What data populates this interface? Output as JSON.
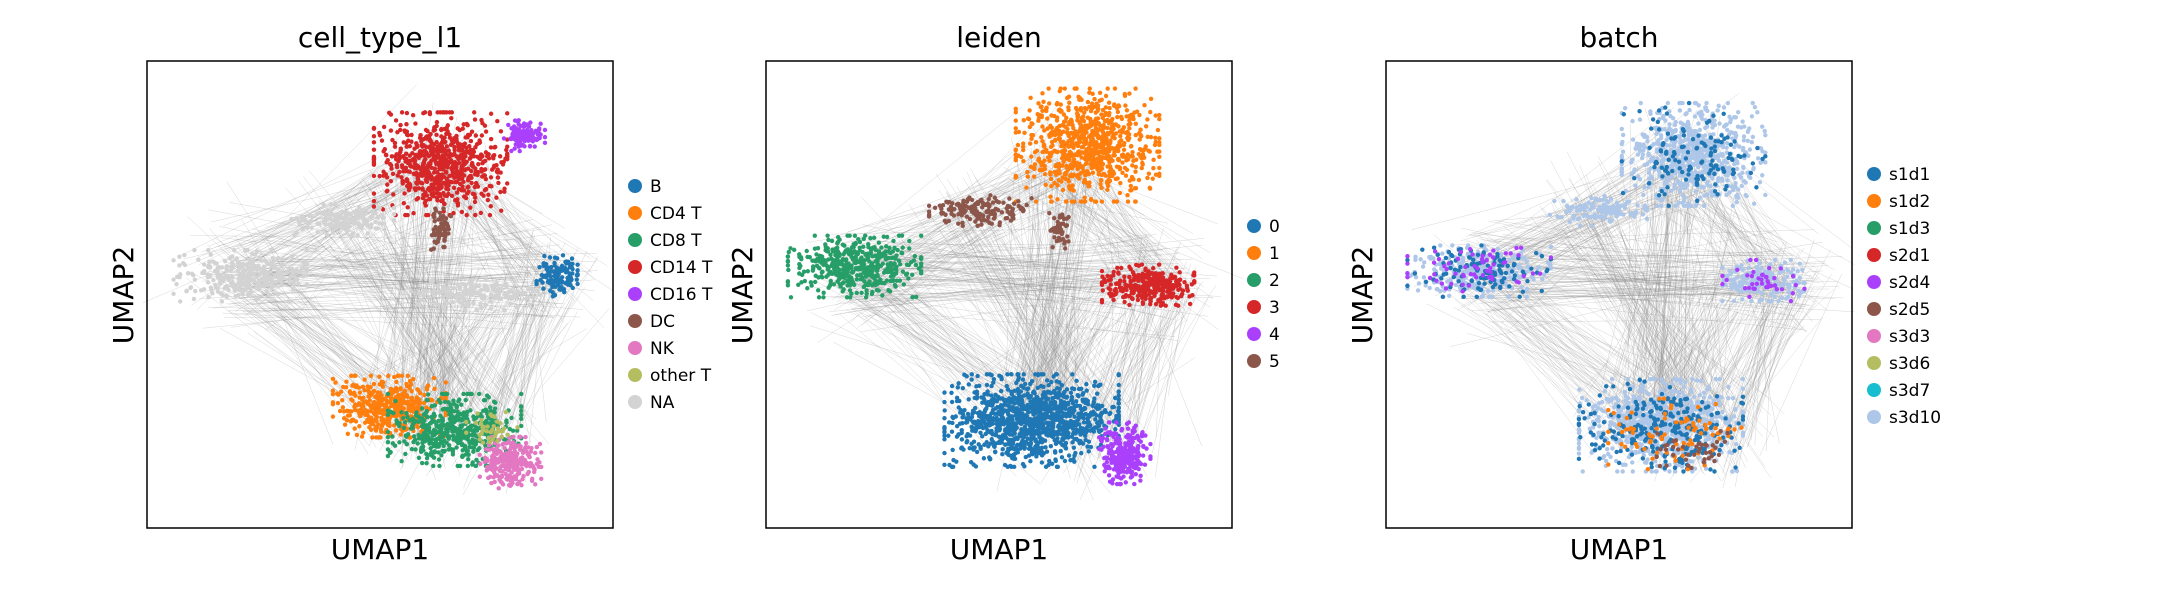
{
  "chart_data": [
    {
      "type": "scatter",
      "title": "cell_type_l1",
      "xlabel": "UMAP1",
      "ylabel": "UMAP2",
      "legend_position": "right",
      "legend": [
        {
          "name": "B",
          "color": "#1f77b4"
        },
        {
          "name": "CD4 T",
          "color": "#ff7f0e"
        },
        {
          "name": "CD8 T",
          "color": "#279e68"
        },
        {
          "name": "CD14 T",
          "color": "#d62728"
        },
        {
          "name": "CD16 T",
          "color": "#aa40fc"
        },
        {
          "name": "DC",
          "color": "#8c564b"
        },
        {
          "name": "NK",
          "color": "#e377c2"
        },
        {
          "name": "other T",
          "color": "#b5bd61"
        },
        {
          "name": "NA",
          "color": "#d3d3d3"
        }
      ],
      "clusters": [
        {
          "group": "CD14 T",
          "x": 0.63,
          "y": 0.22,
          "rx": 0.13,
          "ry": 0.1,
          "n": 700
        },
        {
          "group": "CD16 T",
          "x": 0.81,
          "y": 0.16,
          "rx": 0.04,
          "ry": 0.03,
          "n": 120
        },
        {
          "group": "NA",
          "x": 0.2,
          "y": 0.46,
          "rx": 0.13,
          "ry": 0.05,
          "n": 280
        },
        {
          "group": "NA",
          "x": 0.42,
          "y": 0.34,
          "rx": 0.1,
          "ry": 0.03,
          "n": 150
        },
        {
          "group": "NA",
          "x": 0.72,
          "y": 0.5,
          "rx": 0.14,
          "ry": 0.03,
          "n": 160
        },
        {
          "group": "B",
          "x": 0.88,
          "y": 0.46,
          "rx": 0.04,
          "ry": 0.04,
          "n": 130
        },
        {
          "group": "DC",
          "x": 0.63,
          "y": 0.36,
          "rx": 0.02,
          "ry": 0.04,
          "n": 60
        },
        {
          "group": "CD4 T",
          "x": 0.52,
          "y": 0.74,
          "rx": 0.11,
          "ry": 0.06,
          "n": 450
        },
        {
          "group": "CD8 T",
          "x": 0.66,
          "y": 0.79,
          "rx": 0.13,
          "ry": 0.07,
          "n": 500
        },
        {
          "group": "NK",
          "x": 0.78,
          "y": 0.86,
          "rx": 0.06,
          "ry": 0.05,
          "n": 260
        },
        {
          "group": "other T",
          "x": 0.74,
          "y": 0.79,
          "rx": 0.05,
          "ry": 0.04,
          "n": 40
        }
      ]
    },
    {
      "type": "scatter",
      "title": "leiden",
      "xlabel": "UMAP1",
      "ylabel": "UMAP2",
      "legend_position": "right",
      "legend": [
        {
          "name": "0",
          "color": "#1f77b4"
        },
        {
          "name": "1",
          "color": "#ff7f0e"
        },
        {
          "name": "2",
          "color": "#279e68"
        },
        {
          "name": "3",
          "color": "#d62728"
        },
        {
          "name": "4",
          "color": "#aa40fc"
        },
        {
          "name": "5",
          "color": "#8c564b"
        }
      ],
      "clusters": [
        {
          "group": "1",
          "x": 0.69,
          "y": 0.18,
          "rx": 0.14,
          "ry": 0.11,
          "n": 800
        },
        {
          "group": "2",
          "x": 0.19,
          "y": 0.44,
          "rx": 0.13,
          "ry": 0.06,
          "n": 450
        },
        {
          "group": "5",
          "x": 0.46,
          "y": 0.32,
          "rx": 0.1,
          "ry": 0.03,
          "n": 160
        },
        {
          "group": "5",
          "x": 0.63,
          "y": 0.36,
          "rx": 0.02,
          "ry": 0.04,
          "n": 50
        },
        {
          "group": "3",
          "x": 0.82,
          "y": 0.48,
          "rx": 0.09,
          "ry": 0.04,
          "n": 320
        },
        {
          "group": "0",
          "x": 0.57,
          "y": 0.77,
          "rx": 0.17,
          "ry": 0.09,
          "n": 1100
        },
        {
          "group": "4",
          "x": 0.77,
          "y": 0.84,
          "rx": 0.05,
          "ry": 0.06,
          "n": 260
        }
      ]
    },
    {
      "type": "scatter",
      "title": "batch",
      "xlabel": "UMAP1",
      "ylabel": "UMAP2",
      "legend_position": "right",
      "legend": [
        {
          "name": "s1d1",
          "color": "#1f77b4"
        },
        {
          "name": "s1d2",
          "color": "#ff7f0e"
        },
        {
          "name": "s1d3",
          "color": "#279e68"
        },
        {
          "name": "s2d1",
          "color": "#d62728"
        },
        {
          "name": "s2d4",
          "color": "#aa40fc"
        },
        {
          "name": "s2d5",
          "color": "#8c564b"
        },
        {
          "name": "s3d3",
          "color": "#e377c2"
        },
        {
          "name": "s3d6",
          "color": "#b5bd61"
        },
        {
          "name": "s3d7",
          "color": "#17becf"
        },
        {
          "name": "s3d10",
          "color": "#aec7e8"
        }
      ],
      "clusters": [
        {
          "group": "s3d10",
          "x": 0.66,
          "y": 0.2,
          "rx": 0.14,
          "ry": 0.1,
          "n": 700
        },
        {
          "group": "s1d1",
          "x": 0.66,
          "y": 0.2,
          "rx": 0.14,
          "ry": 0.1,
          "n": 130
        },
        {
          "group": "s3d10",
          "x": 0.2,
          "y": 0.45,
          "rx": 0.14,
          "ry": 0.05,
          "n": 300
        },
        {
          "group": "s1d1",
          "x": 0.2,
          "y": 0.45,
          "rx": 0.14,
          "ry": 0.05,
          "n": 120
        },
        {
          "group": "s2d4",
          "x": 0.2,
          "y": 0.45,
          "rx": 0.14,
          "ry": 0.05,
          "n": 60
        },
        {
          "group": "s3d10",
          "x": 0.45,
          "y": 0.32,
          "rx": 0.1,
          "ry": 0.03,
          "n": 120
        },
        {
          "group": "s3d10",
          "x": 0.81,
          "y": 0.47,
          "rx": 0.08,
          "ry": 0.04,
          "n": 200
        },
        {
          "group": "s2d4",
          "x": 0.81,
          "y": 0.47,
          "rx": 0.08,
          "ry": 0.04,
          "n": 40
        },
        {
          "group": "s3d10",
          "x": 0.59,
          "y": 0.78,
          "rx": 0.16,
          "ry": 0.09,
          "n": 800
        },
        {
          "group": "s1d1",
          "x": 0.59,
          "y": 0.78,
          "rx": 0.16,
          "ry": 0.09,
          "n": 260
        },
        {
          "group": "s1d2",
          "x": 0.62,
          "y": 0.8,
          "rx": 0.13,
          "ry": 0.07,
          "n": 80
        },
        {
          "group": "s2d5",
          "x": 0.65,
          "y": 0.84,
          "rx": 0.12,
          "ry": 0.05,
          "n": 40
        }
      ]
    }
  ]
}
